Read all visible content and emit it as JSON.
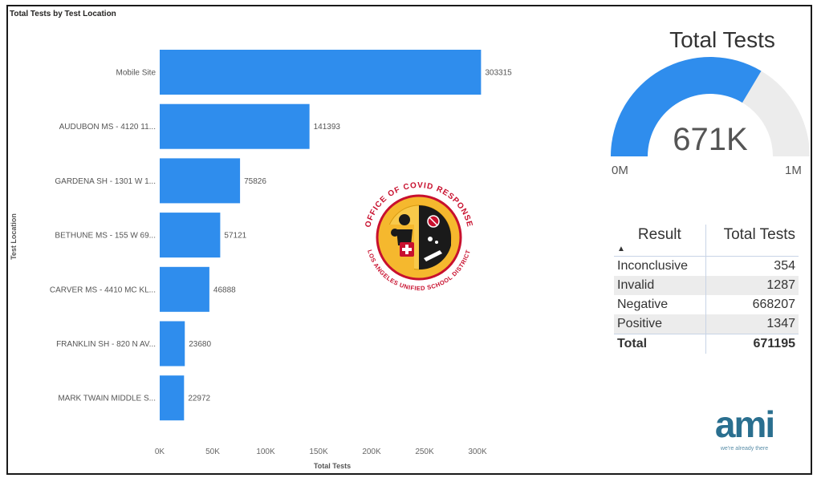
{
  "chart_data": {
    "type": "bar",
    "orientation": "horizontal",
    "title": "Total Tests by Test Location",
    "xlabel": "Total Tests",
    "ylabel": "Test Location",
    "categories": [
      "Mobile Site",
      "AUDUBON MS - 4120 11...",
      "GARDENA SH - 1301 W 1...",
      "BETHUNE MS - 155 W 69...",
      "CARVER MS - 4410 MC KL...",
      "FRANKLIN SH - 820 N AV...",
      "MARK TWAIN MIDDLE S..."
    ],
    "values": [
      303315,
      141393,
      75826,
      57121,
      46888,
      23680,
      22972
    ],
    "data_labels": [
      "303315",
      "141393",
      "75826",
      "57121",
      "46888",
      "23680",
      "22972"
    ],
    "xlim": [
      0,
      300000
    ],
    "xticks": [
      0,
      50000,
      100000,
      150000,
      200000,
      250000,
      300000
    ],
    "xtick_labels": [
      "0K",
      "50K",
      "100K",
      "150K",
      "200K",
      "250K",
      "300K"
    ],
    "grid": false,
    "bar_color": "#2f8ded"
  },
  "gauge": {
    "title": "Total Tests",
    "value": 671195,
    "value_label": "671K",
    "min": 0,
    "max": 1000000,
    "min_label": "0M",
    "max_label": "1M",
    "fill_color": "#2f8ded",
    "track_color": "#ececec"
  },
  "results_table": {
    "headers": {
      "result": "Result",
      "total": "Total Tests"
    },
    "sort_indicator": "▲",
    "rows": [
      {
        "result": "Inconclusive",
        "total": "354"
      },
      {
        "result": "Invalid",
        "total": "1287"
      },
      {
        "result": "Negative",
        "total": "668207"
      },
      {
        "result": "Positive",
        "total": "1347"
      }
    ],
    "total_row": {
      "result": "Total",
      "total": "671195"
    }
  },
  "seal": {
    "icon": "ofice-of-covid-response-seal",
    "top_text": "OFFICE OF COVID RESPONSE",
    "bottom_text": "LOS ANGELES UNIFIED SCHOOL DISTRICT",
    "ring_color": "#c8102e",
    "sun_color": "#f5b82e"
  },
  "logo": {
    "text": "ami",
    "tagline": "we're already there",
    "color": "#2a6f8f"
  }
}
